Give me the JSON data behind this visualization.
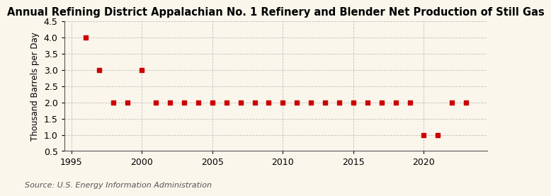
{
  "title": "Annual Refining District Appalachian No. 1 Refinery and Blender Net Production of Still Gas",
  "ylabel": "Thousand Barrels per Day",
  "source": "Source: U.S. Energy Information Administration",
  "background_color": "#faf6ec",
  "plot_background_color": "#faf6ec",
  "marker_color": "#cc0000",
  "grid_color": "#aaaaaa",
  "years": [
    1996,
    1997,
    1998,
    1999,
    2000,
    2001,
    2002,
    2003,
    2004,
    2005,
    2006,
    2007,
    2008,
    2009,
    2010,
    2011,
    2012,
    2013,
    2014,
    2015,
    2016,
    2017,
    2018,
    2019,
    2020,
    2021,
    2022,
    2023
  ],
  "values": [
    4.0,
    3.0,
    2.0,
    2.0,
    3.0,
    2.0,
    2.0,
    2.0,
    2.0,
    2.0,
    2.0,
    2.0,
    2.0,
    2.0,
    2.0,
    2.0,
    2.0,
    2.0,
    2.0,
    2.0,
    2.0,
    2.0,
    2.0,
    2.0,
    1.0,
    1.0,
    2.0,
    2.0
  ],
  "xlim": [
    1994.5,
    2024.5
  ],
  "ylim": [
    0.5,
    4.5
  ],
  "xticks": [
    1995,
    2000,
    2005,
    2010,
    2015,
    2020
  ],
  "yticks": [
    0.5,
    1.0,
    1.5,
    2.0,
    2.5,
    3.0,
    3.5,
    4.0,
    4.5
  ],
  "title_fontsize": 10.5,
  "label_fontsize": 8.5,
  "tick_fontsize": 9,
  "source_fontsize": 8
}
